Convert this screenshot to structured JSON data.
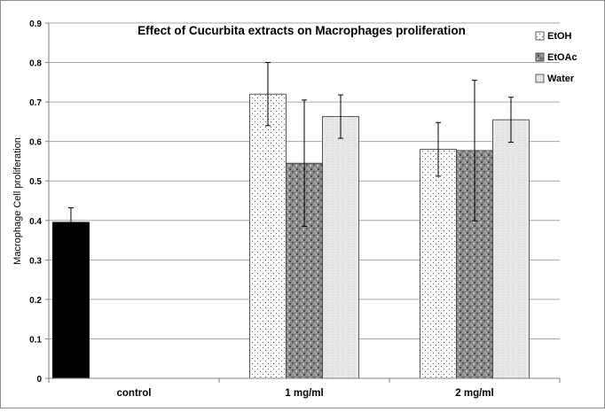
{
  "chart_data": {
    "type": "bar",
    "title": "Effect of Cucurbita extracts on Macrophages proliferation",
    "ylabel": "Macrophage Cell proliferation",
    "xlabel": "",
    "ylim": [
      0,
      0.9
    ],
    "yticks": [
      "0",
      "0.1",
      "0.2",
      "0.3",
      "0.4",
      "0.5",
      "0.6",
      "0.7",
      "0.8",
      "0.9"
    ],
    "grid": true,
    "legend_position": "top-right",
    "categories": [
      "control",
      "1 mg/ml",
      "2 mg/ml"
    ],
    "control": {
      "value": 0.395,
      "error": 0.037,
      "color": "#000000"
    },
    "series": [
      {
        "name": "EtOH",
        "pattern": "dots",
        "values": [
          null,
          0.72,
          0.58
        ],
        "errors": [
          null,
          0.08,
          0.068
        ]
      },
      {
        "name": "EtOAc",
        "pattern": "granite",
        "values": [
          null,
          0.545,
          0.577
        ],
        "errors": [
          null,
          0.16,
          0.178
        ]
      },
      {
        "name": "Water",
        "pattern": "light",
        "values": [
          null,
          0.663,
          0.655
        ],
        "errors": [
          null,
          0.055,
          0.057
        ]
      }
    ]
  }
}
